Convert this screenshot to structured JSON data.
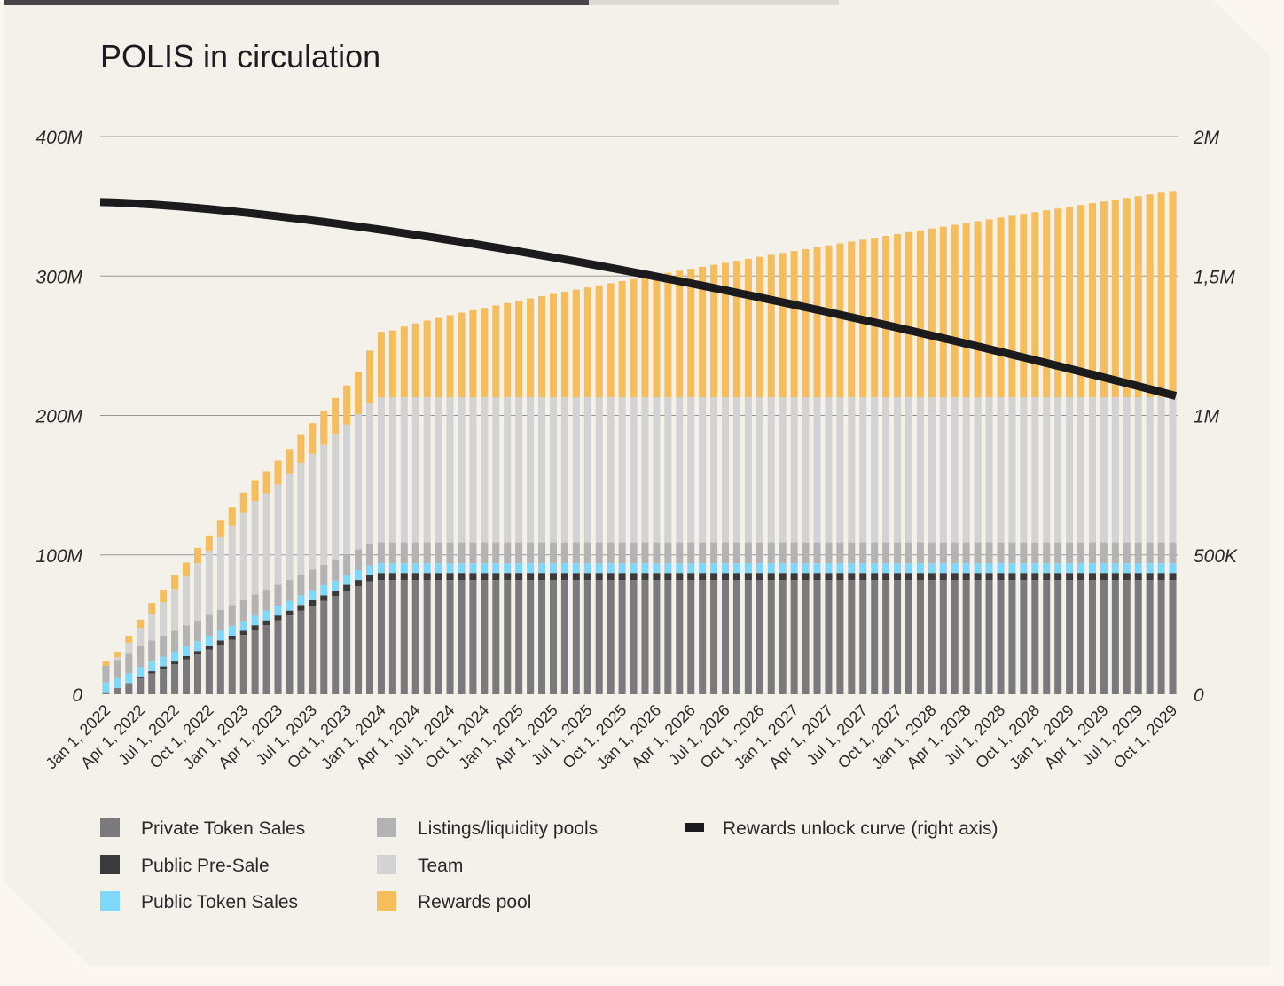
{
  "colors": {
    "background_outer": "#fbf7f0",
    "panel": "#f4f1ea",
    "private_token_sales": "#7a797b",
    "public_pre_sale": "#3a3a3c",
    "public_token_sales": "#7fd8fa",
    "listings_liquidity_pools": "#b3b3b3",
    "team": "#d3d3d3",
    "rewards_pool": "#f5bd5c",
    "rewards_curve": "#1b1b1d"
  },
  "chart_data": {
    "type": "bar",
    "title": "POLIS in circulation",
    "stacked": true,
    "grid": true,
    "legend_position": "bottom",
    "x_start": "Jan 1, 2022",
    "x_end": "Oct 1, 2029",
    "frequency": "monthly",
    "period_count": 94,
    "x_tick_labels": [
      "Jan 1, 2022",
      "Apr 1, 2022",
      "Jul 1, 2022",
      "Oct 1, 2022",
      "Jan 1, 2023",
      "Apr 1, 2023",
      "Jul 1, 2023",
      "Oct 1, 2023",
      "Jan 1, 2024",
      "Apr 1, 2024",
      "Jul 1, 2024",
      "Oct 1, 2024",
      "Jan 1, 2025",
      "Apr 1, 2025",
      "Jul 1, 2025",
      "Oct 1, 2025",
      "Jan 1, 2026",
      "Apr 1, 2026",
      "Jul 1, 2026",
      "Oct 1, 2026",
      "Jan 1, 2027",
      "Apr 1, 2027",
      "Jul 1, 2027",
      "Oct 1, 2027",
      "Jan 1, 2028",
      "Apr 1, 2028",
      "Jul 1, 2028",
      "Oct 1, 2028",
      "Jan 1, 2029",
      "Apr 1, 2029",
      "Jul 1, 2029",
      "Oct 1, 2029"
    ],
    "y_left": {
      "ticks": [
        "0",
        "100M",
        "200M",
        "300M",
        "400M"
      ],
      "ylim": [
        0,
        400000000
      ]
    },
    "y_right": {
      "ticks": [
        "0",
        "500K",
        "1M",
        "1,5M",
        "2M"
      ],
      "ylim": [
        0,
        2000000
      ]
    },
    "series": [
      {
        "name": "Private Token Sales",
        "key": "private",
        "flat_value": 82000000,
        "values_first_25": [
          1500000,
          4500000,
          8000000,
          11500000,
          15000000,
          18000000,
          21500000,
          25000000,
          28500000,
          32000000,
          35500000,
          39000000,
          42500000,
          46000000,
          49500000,
          53000000,
          56500000,
          60000000,
          63500000,
          67000000,
          70500000,
          74000000,
          77500000,
          81000000,
          82000000
        ]
      },
      {
        "name": "Public Pre-Sale",
        "key": "presale",
        "flat_value": 5000000,
        "values_first_25": [
          0,
          0,
          0,
          1000000,
          1500000,
          2000000,
          2000000,
          2500000,
          2500000,
          3000000,
          3000000,
          3000000,
          3000000,
          3500000,
          3500000,
          3500000,
          3500000,
          4000000,
          4000000,
          4000000,
          4000000,
          4500000,
          4500000,
          4500000,
          5000000
        ]
      },
      {
        "name": "Public Token Sales",
        "key": "public",
        "flat_value": 7000000,
        "values_first_25": [
          7000000,
          7000000,
          7000000,
          7000000,
          7000000,
          7000000,
          7000000,
          7000000,
          7000000,
          7000000,
          7000000,
          7000000,
          7000000,
          7000000,
          7000000,
          7000000,
          7000000,
          7000000,
          7000000,
          7000000,
          7000000,
          7000000,
          7000000,
          7000000,
          7000000
        ]
      },
      {
        "name": "Listings/liquidity pools",
        "key": "listings",
        "flat_value": 15000000,
        "values_first_25": [
          12000000,
          13000000,
          14000000,
          15000000,
          15000000,
          15000000,
          15000000,
          15000000,
          15000000,
          15000000,
          15000000,
          15000000,
          15000000,
          15000000,
          15000000,
          15000000,
          15000000,
          15000000,
          15000000,
          15000000,
          15000000,
          15000000,
          15000000,
          15000000,
          15000000
        ]
      },
      {
        "name": "Team",
        "key": "team",
        "flat_value": 104000000,
        "values_first_25": [
          0,
          2000000,
          8000000,
          13000000,
          19000000,
          24000000,
          30000000,
          35000000,
          41000000,
          46000000,
          52000000,
          57000000,
          63000000,
          67000000,
          69000000,
          72000000,
          76000000,
          80000000,
          83000000,
          86000000,
          90000000,
          93000000,
          97000000,
          101000000,
          104000000
        ]
      },
      {
        "name": "Rewards pool",
        "key": "rewards",
        "values_first_25": [
          3000000,
          4000000,
          5000000,
          6000000,
          8000000,
          9000000,
          10000000,
          10000000,
          11000000,
          11000000,
          12000000,
          13000000,
          14000000,
          15000000,
          16000000,
          17000000,
          18000000,
          20000000,
          22000000,
          24000000,
          26000000,
          28000000,
          30000000,
          38000000,
          47000000
        ],
        "tail_start": 48000000,
        "tail_end": 148000000
      }
    ],
    "line_series": {
      "name": "Rewards unlock curve (right axis)",
      "axis": "right",
      "start": 1765000,
      "end": 1070000
    }
  },
  "legend": [
    {
      "label": "Private Token Sales",
      "color_key": "private_token_sales"
    },
    {
      "label": "Public Pre-Sale",
      "color_key": "public_pre_sale"
    },
    {
      "label": "Public Token Sales",
      "color_key": "public_token_sales"
    },
    {
      "label": "Listings/liquidity pools",
      "color_key": "listings_liquidity_pools"
    },
    {
      "label": "Team",
      "color_key": "team"
    },
    {
      "label": "Rewards pool",
      "color_key": "rewards_pool"
    },
    {
      "label": "Rewards unlock curve (right axis)",
      "color_key": "rewards_curve"
    }
  ]
}
